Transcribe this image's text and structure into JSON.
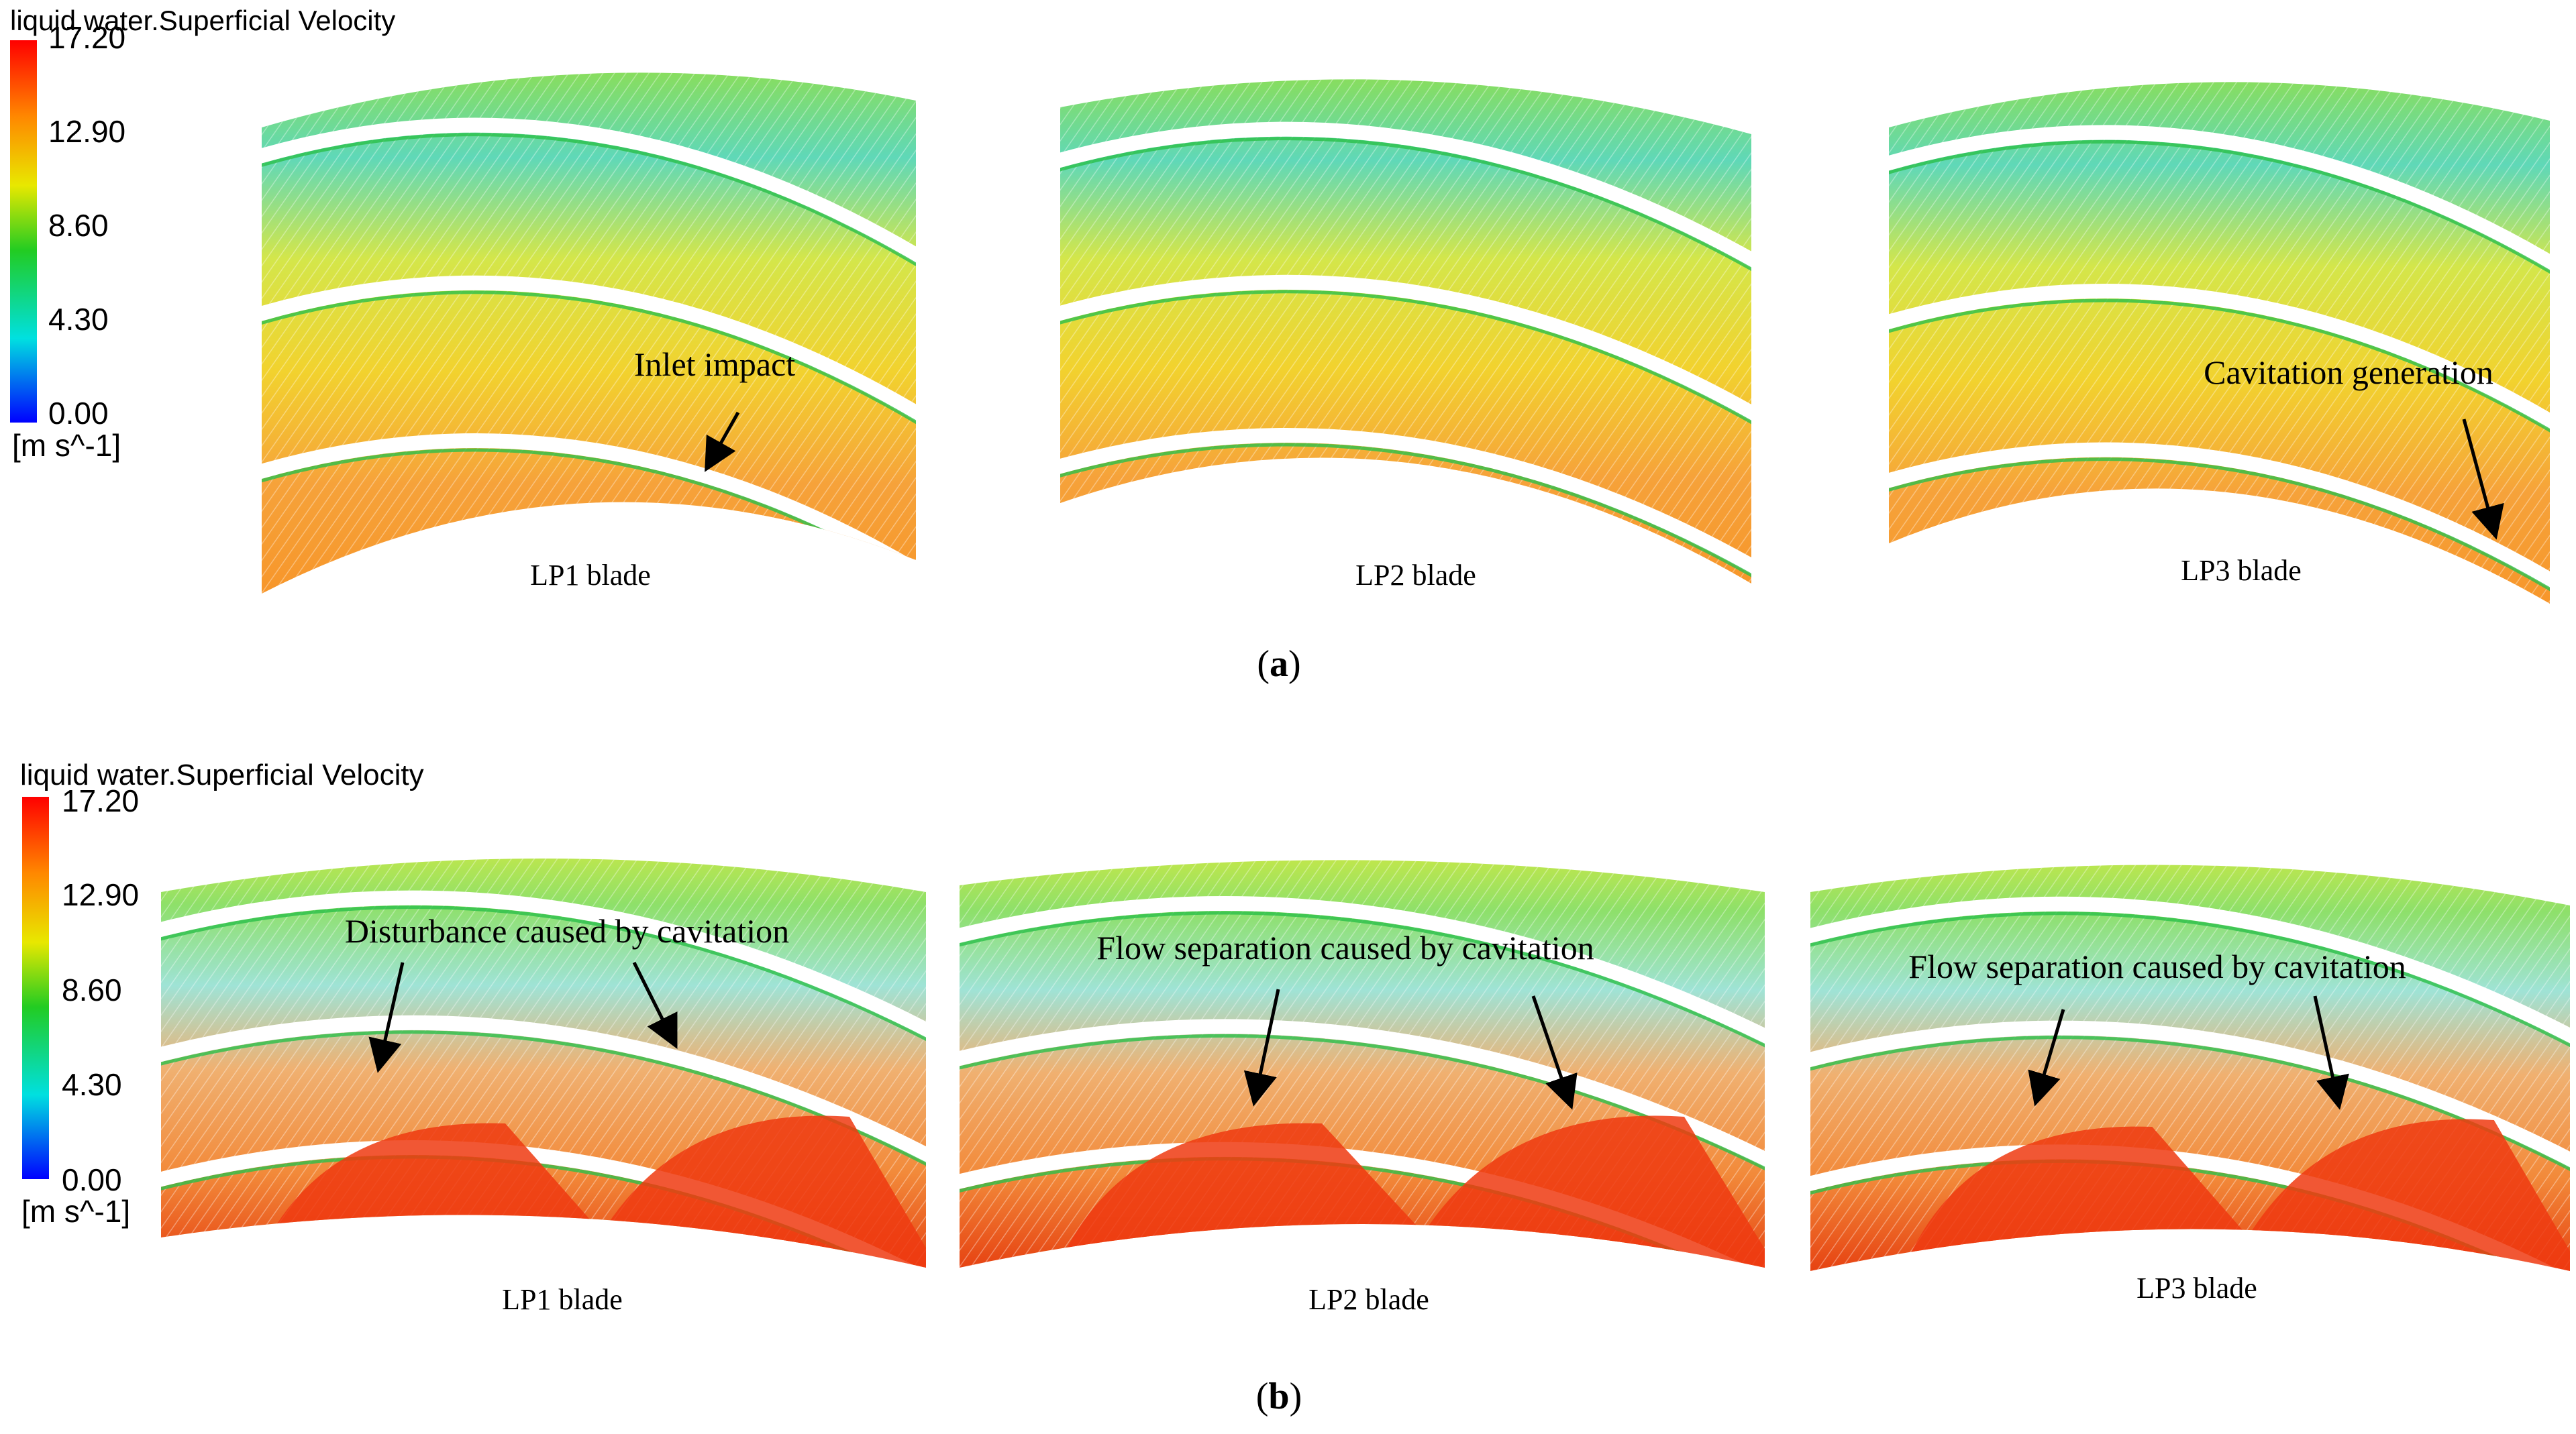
{
  "colors": {
    "scale_top": "#ff0000",
    "scale_high": "#ff8800",
    "scale_mid_high": "#e8e800",
    "scale_mid": "#22cc22",
    "scale_mid_low": "#00e0e0",
    "scale_low": "#0000ff"
  },
  "panels": [
    {
      "legend": {
        "title": "liquid water.Superficial Velocity",
        "ticks": [
          "17.20",
          "12.90",
          "8.60",
          "4.30",
          "0.00"
        ],
        "unit": "[m s^-1]"
      },
      "caption": "(a)",
      "caption_letter": "a",
      "plots": [
        {
          "label": "LP1 blade",
          "annotation": "Inlet  impact"
        },
        {
          "label": "LP2 blade",
          "annotation": ""
        },
        {
          "label": "LP3 blade",
          "annotation": "Cavitation   generation"
        }
      ]
    },
    {
      "legend": {
        "title": "liquid water.Superficial Velocity",
        "ticks": [
          "17.20",
          "12.90",
          "8.60",
          "4.30",
          "0.00"
        ],
        "unit": "[m s^-1]"
      },
      "caption": "(b)",
      "caption_letter": "b",
      "plots": [
        {
          "label": "LP1 blade",
          "annotation": "Disturbance caused by cavitation"
        },
        {
          "label": "LP2 blade",
          "annotation": "Flow separation caused by cavitation"
        },
        {
          "label": "LP3 blade",
          "annotation": "Flow separation caused by cavitation"
        }
      ]
    }
  ]
}
